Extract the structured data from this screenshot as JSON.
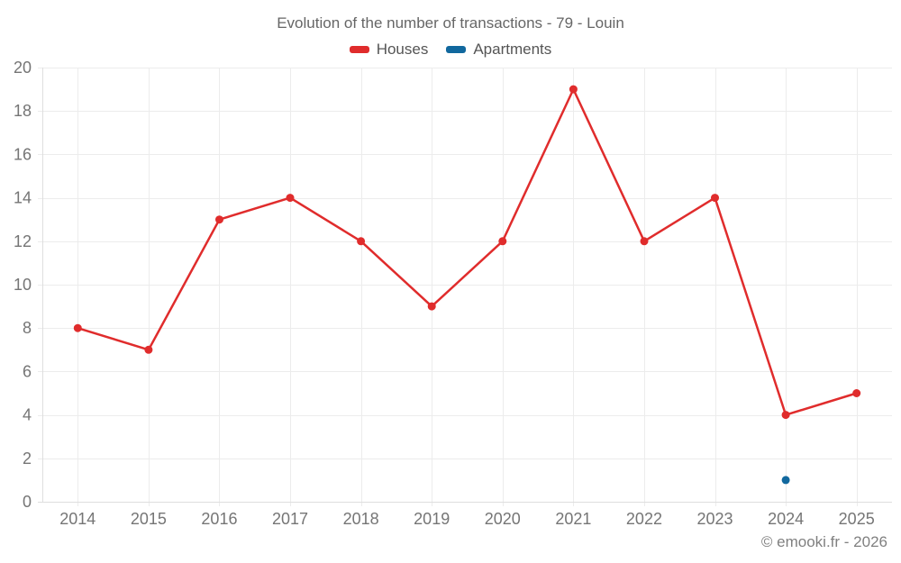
{
  "chart_data": {
    "type": "line",
    "title": "Evolution of the number of transactions - 79 - Louin",
    "categories": [
      "2014",
      "2015",
      "2016",
      "2017",
      "2018",
      "2019",
      "2020",
      "2021",
      "2022",
      "2023",
      "2024",
      "2025"
    ],
    "series": [
      {
        "name": "Houses",
        "color": "#e02c2c",
        "values": [
          8,
          7,
          13,
          14,
          12,
          9,
          12,
          19,
          12,
          14,
          4,
          5
        ]
      },
      {
        "name": "Apartments",
        "color": "#11689e",
        "values": [
          null,
          null,
          null,
          null,
          null,
          null,
          null,
          null,
          null,
          null,
          1,
          null
        ]
      }
    ],
    "xlabel": "",
    "ylabel": "",
    "ylim": [
      0,
      20
    ],
    "yticks": [
      0,
      2,
      4,
      6,
      8,
      10,
      12,
      14,
      16,
      18,
      20
    ],
    "grid": true,
    "legend_position": "top",
    "style": {
      "grid_color": "#ececec",
      "axis_border_color": "#dedede",
      "tick_text_color": "#757575",
      "marker_radius": 4.5,
      "line_width": 2.5
    }
  },
  "footer": {
    "copyright": "© emooki.fr - 2026"
  }
}
